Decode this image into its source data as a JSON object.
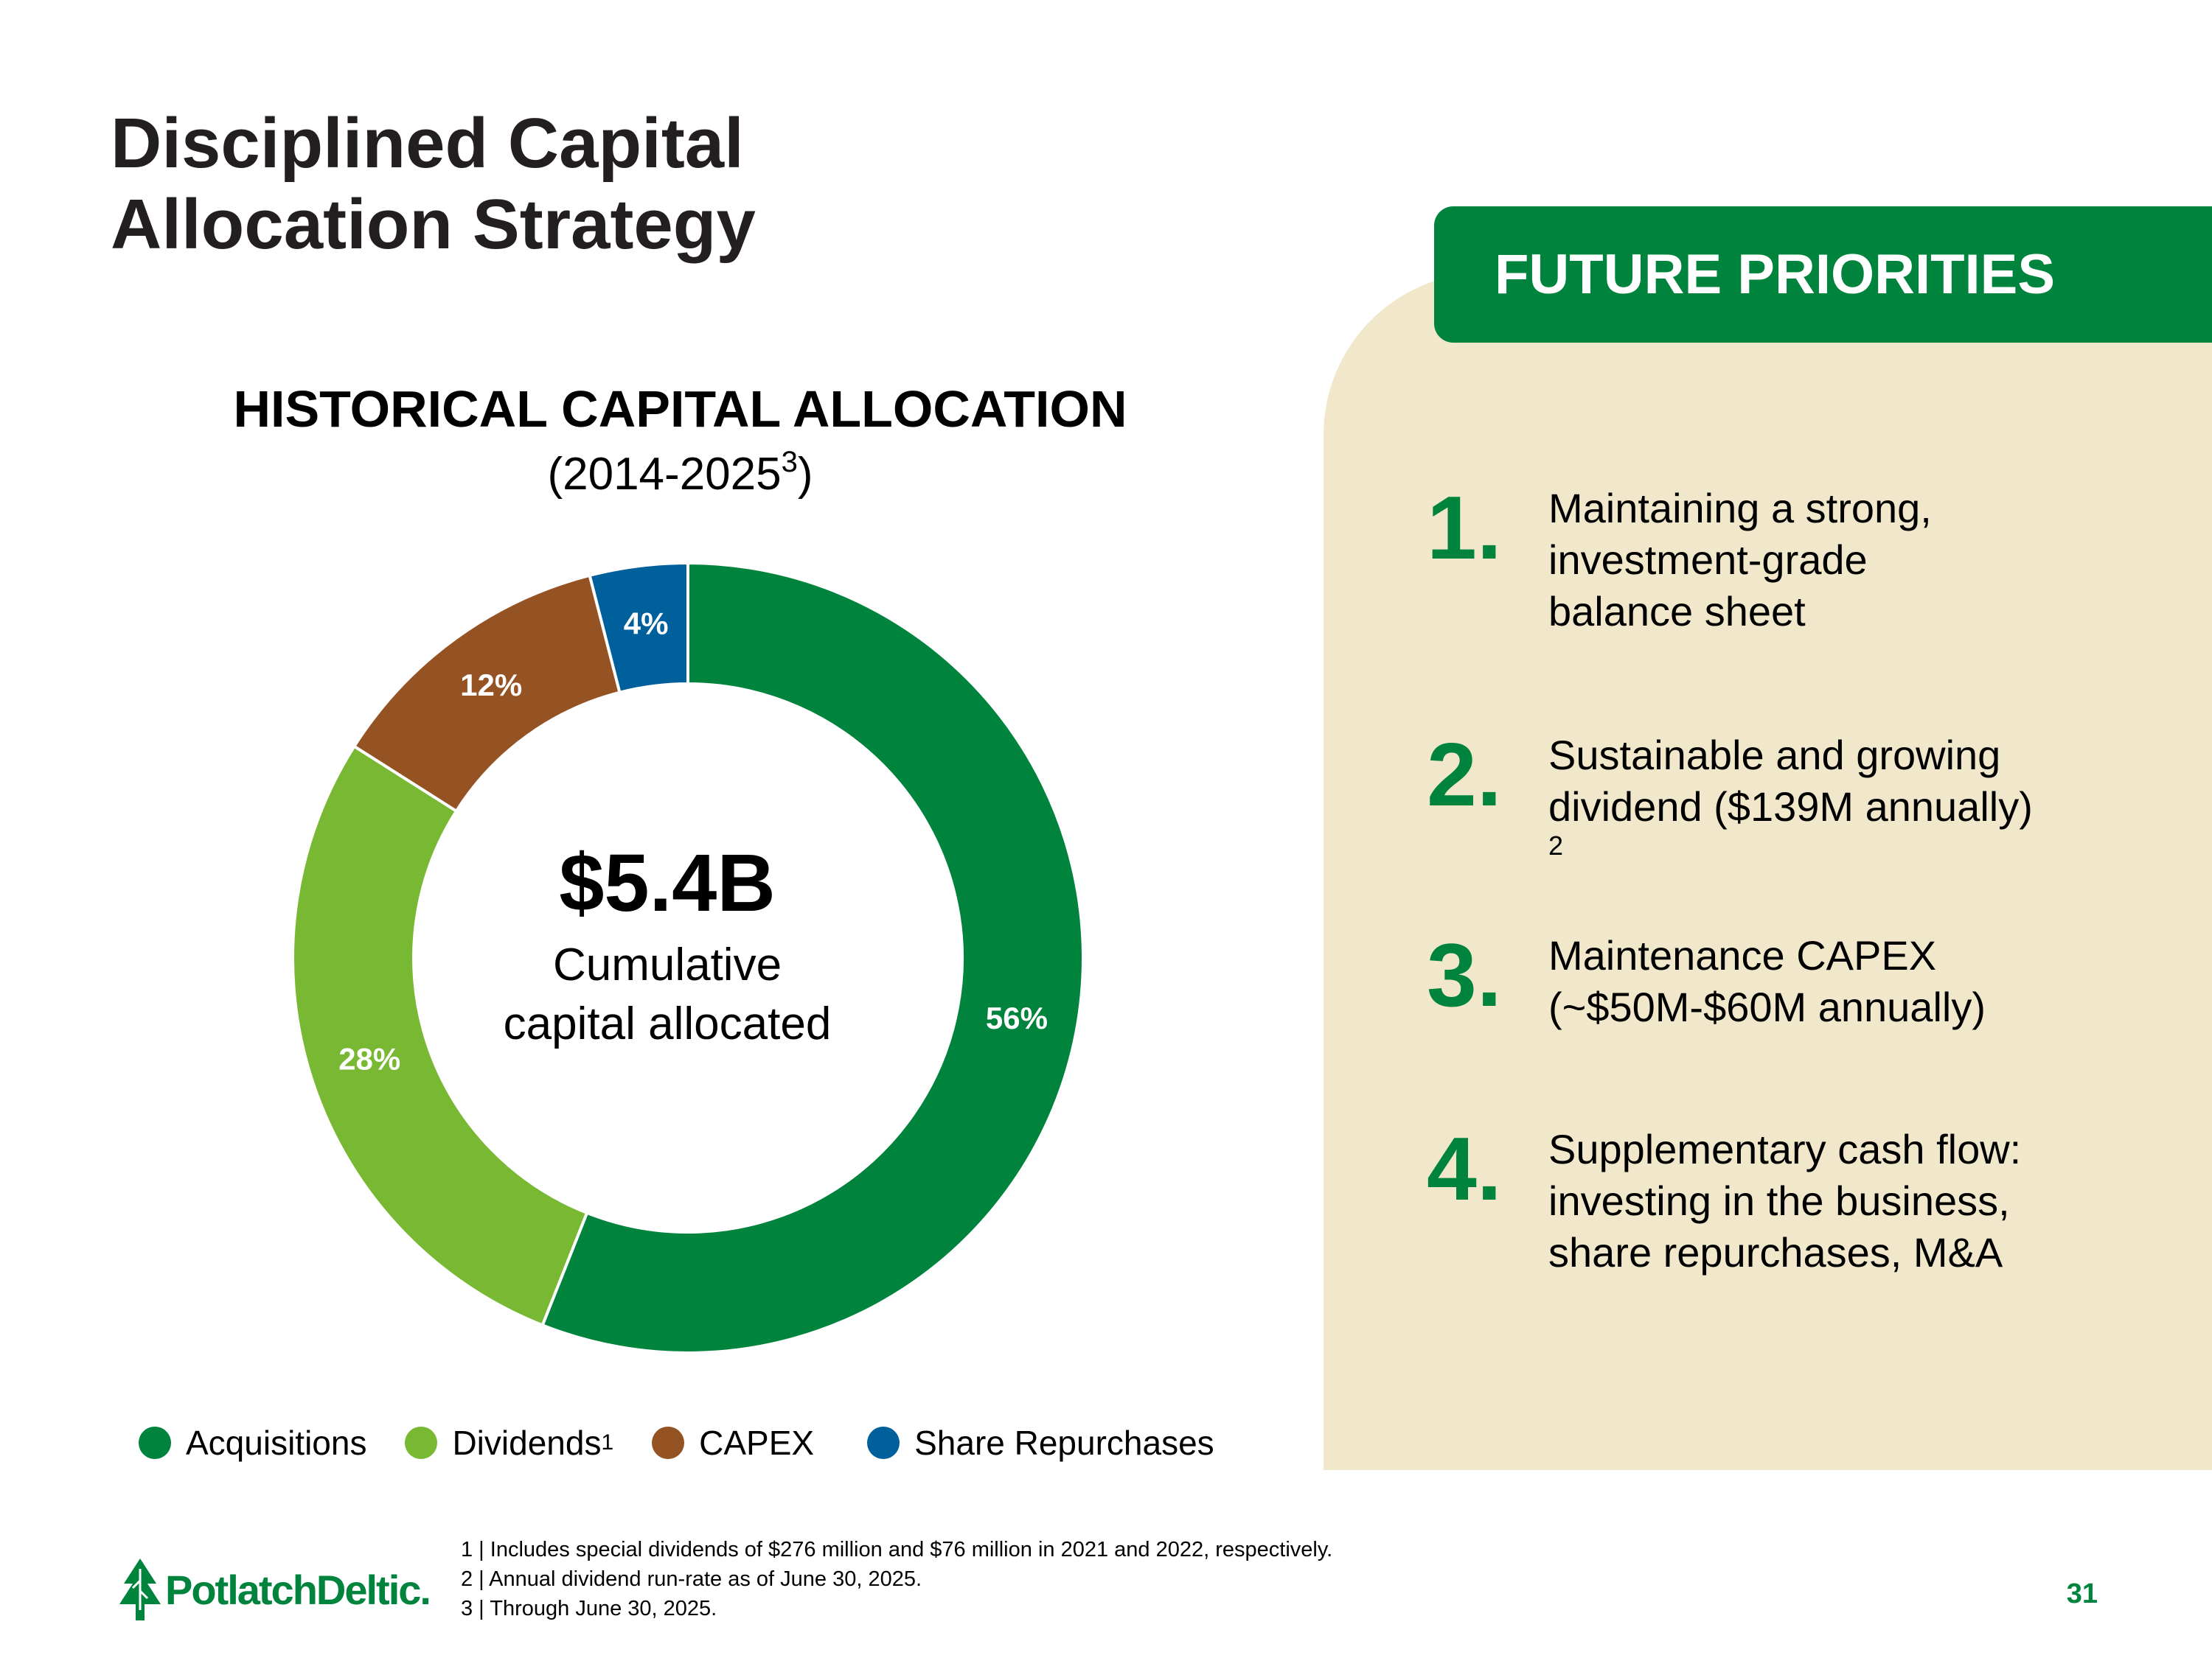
{
  "title_lines": [
    "Disciplined Capital",
    "Allocation Strategy"
  ],
  "chart_data": {
    "type": "pie",
    "variant": "donut",
    "title": "HISTORICAL CAPITAL ALLOCATION",
    "subtitle": "(2014-2025",
    "subtitle_sup": "3",
    "subtitle_end": ")",
    "center_value": "$5.4B",
    "center_caption": [
      "Cumulative",
      "capital allocated"
    ],
    "categories": [
      "Acquisitions",
      "Dividends",
      "CAPEX",
      "Share Repurchases"
    ],
    "values": [
      56,
      28,
      12,
      4
    ],
    "labels": [
      "56%",
      "28%",
      "12%",
      "4%"
    ],
    "colors": [
      "#00843d",
      "#78b833",
      "#955323",
      "#00609c"
    ],
    "legend": [
      {
        "label": "Acquisitions",
        "sup": ""
      },
      {
        "label": "Dividends",
        "sup": "1"
      },
      {
        "label": "CAPEX",
        "sup": ""
      },
      {
        "label": "Share Repurchases",
        "sup": ""
      }
    ],
    "legend_position": "bottom"
  },
  "panel": {
    "header": "FUTURE PRIORITIES",
    "items": [
      {
        "number": "1.",
        "lines": [
          "Maintaining a strong,",
          "investment-grade",
          "balance sheet"
        ]
      },
      {
        "number": "2.",
        "lines": [
          "Sustainable and growing",
          "dividend ($139M annually)"
        ],
        "sup": "2"
      },
      {
        "number": "3.",
        "lines": [
          "Maintenance CAPEX",
          "(~$50M-$60M annually)"
        ]
      },
      {
        "number": "4.",
        "lines": [
          "Supplementary cash flow:",
          "investing in the business,",
          "share repurchases, M&A"
        ]
      }
    ]
  },
  "footnotes": [
    "1 | Includes special dividends of $276 million and $76 million in 2021 and 2022, respectively.",
    "2 | Annual dividend run-rate as of June 30, 2025.",
    "3 | Through June 30, 2025."
  ],
  "logo_text": "PotlatchDeltic.",
  "page_number": "31"
}
